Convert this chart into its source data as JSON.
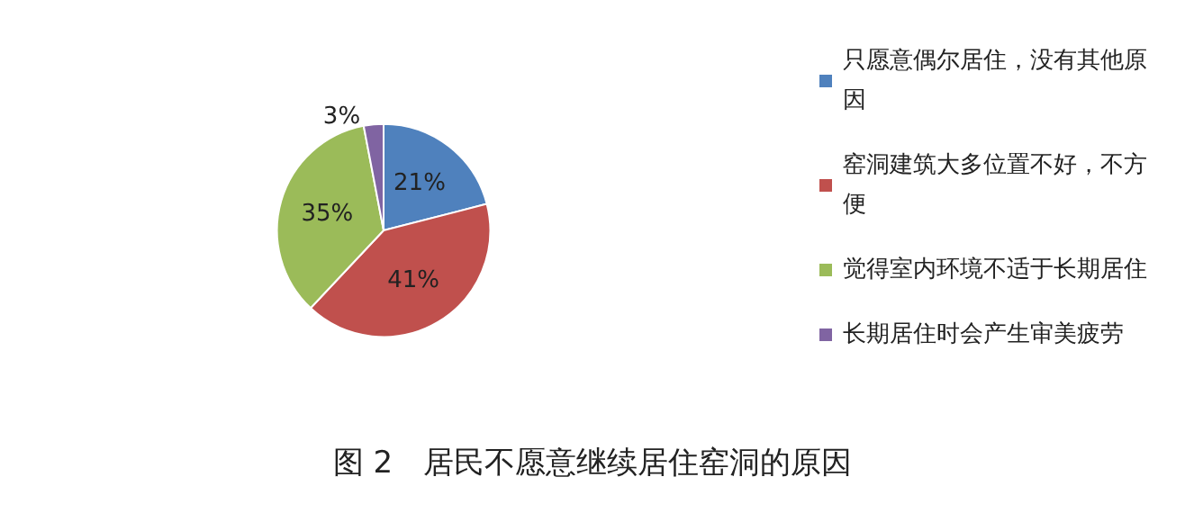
{
  "chart_data": {
    "type": "pie",
    "title": "图 2　居民不愿意继续居住窑洞的原因",
    "categories": [
      "只愿意偶尔居住，没有其他原因",
      "窑洞建筑大多位置不好，不方便",
      "觉得室内环境不适于长期居住",
      "长期居住时会产生审美疲劳"
    ],
    "values": [
      21,
      41,
      35,
      3
    ],
    "value_labels": [
      "21%",
      "41%",
      "35%",
      "3%"
    ],
    "colors": [
      "#4f81bd",
      "#c0504d",
      "#9bbb59",
      "#8064a2"
    ],
    "legend": "right"
  }
}
